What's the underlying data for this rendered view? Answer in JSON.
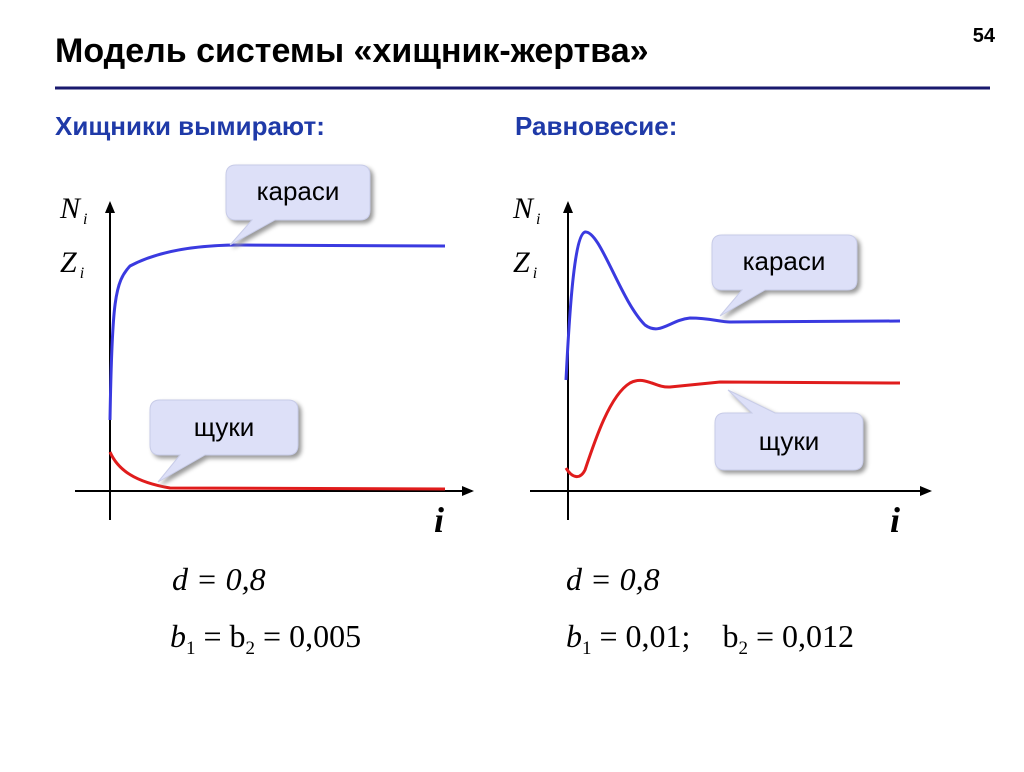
{
  "slide": {
    "title": "Модель системы «хищник-жертва»",
    "number": "54"
  },
  "panels": [
    {
      "heading": "Хищники вымирают:",
      "axis": {
        "y1": [
          "N",
          "i"
        ],
        "y2": [
          "Z",
          "i"
        ],
        "x": "i"
      },
      "callouts": [
        "караси",
        "щуки"
      ],
      "formulas": [
        [
          {
            "t": "d = 0,8"
          }
        ],
        [
          {
            "t": "b",
            "sub": "1"
          },
          {
            "t": " = b",
            "sub": "2"
          },
          {
            "t": " = 0,005"
          }
        ]
      ]
    },
    {
      "heading": "Равновесие:",
      "axis": {
        "y1": [
          "N",
          "i"
        ],
        "y2": [
          "Z",
          "i"
        ],
        "x": "i"
      },
      "callouts": [
        "караси",
        "щуки"
      ],
      "formulas": [
        [
          {
            "t": "d = 0,8"
          }
        ],
        [
          {
            "t": "b",
            "sub": "1"
          },
          {
            "t": " = 0,01;    b",
            "sub": "2"
          },
          {
            "t": " = 0,012"
          }
        ]
      ]
    }
  ]
}
